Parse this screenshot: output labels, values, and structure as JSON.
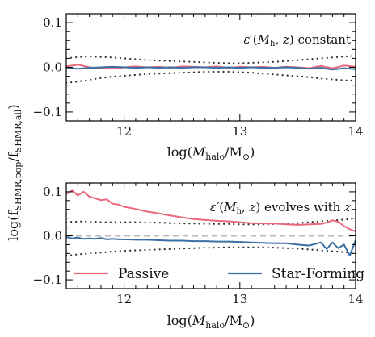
{
  "chart_data": [
    {
      "type": "line",
      "panel": "top",
      "annotation": "ε′(M_h, z) constant",
      "xlabel": "log(M_halo/M_⊙)",
      "xlim": [
        11.5,
        14.0
      ],
      "ylim": [
        -0.12,
        0.12
      ],
      "xticks": [
        "12",
        "13",
        "14"
      ],
      "yticks": [
        "0.1",
        "0.0",
        "−0.1"
      ],
      "x": [
        11.5,
        11.6,
        11.7,
        11.8,
        11.9,
        12.0,
        12.1,
        12.2,
        12.3,
        12.4,
        12.5,
        12.6,
        12.7,
        12.8,
        12.9,
        13.0,
        13.1,
        13.2,
        13.3,
        13.4,
        13.5,
        13.6,
        13.7,
        13.8,
        13.9,
        14.0
      ],
      "series": [
        {
          "name": "Passive",
          "color": "#e8697d",
          "values": [
            0.002,
            0.006,
            0.0,
            -0.002,
            -0.003,
            0.0,
            0.002,
            0.0,
            0.001,
            -0.001,
            0.002,
            0.001,
            0.0,
            0.002,
            -0.001,
            0.001,
            0.0,
            0.001,
            -0.001,
            0.001,
            0.0,
            -0.002,
            0.003,
            -0.002,
            0.004,
            0.001
          ]
        },
        {
          "name": "Star-Forming",
          "color": "#3b6ea3",
          "values": [
            -0.001,
            -0.003,
            -0.001,
            0.0,
            0.001,
            0.0,
            -0.001,
            0.0,
            -0.001,
            0.0,
            -0.001,
            0.0,
            0.0,
            -0.001,
            0.0,
            -0.001,
            0.0,
            -0.001,
            -0.001,
            0.0,
            -0.001,
            -0.003,
            -0.001,
            -0.005,
            -0.002,
            -0.004
          ]
        },
        {
          "name": "upper-envelope",
          "style": "dotted",
          "values": [
            0.02,
            0.023,
            0.024,
            0.023,
            0.022,
            0.02,
            0.018,
            0.016,
            0.015,
            0.014,
            0.013,
            0.012,
            0.011,
            0.01,
            0.009,
            0.009,
            0.01,
            0.011,
            0.012,
            0.014,
            0.016,
            0.018,
            0.02,
            0.022,
            0.024,
            0.026
          ]
        },
        {
          "name": "lower-envelope",
          "style": "dotted",
          "values": [
            -0.035,
            -0.032,
            -0.028,
            -0.024,
            -0.021,
            -0.019,
            -0.017,
            -0.015,
            -0.014,
            -0.013,
            -0.012,
            -0.011,
            -0.01,
            -0.01,
            -0.01,
            -0.011,
            -0.012,
            -0.014,
            -0.016,
            -0.018,
            -0.02,
            -0.022,
            -0.025,
            -0.027,
            -0.029,
            -0.03
          ]
        }
      ]
    },
    {
      "type": "line",
      "panel": "bottom",
      "annotation": "ε′(M_h, z) evolves with z",
      "xlabel": "log(M_halo/M_⊙)",
      "xlim": [
        11.5,
        14.0
      ],
      "ylim": [
        -0.12,
        0.12
      ],
      "xticks": [
        "12",
        "13",
        "14"
      ],
      "yticks": [
        "0.1",
        "0.0",
        "−0.1"
      ],
      "zero_line": {
        "y": 0.0,
        "style": "dashed",
        "color": "#bbbbbb"
      },
      "x": [
        11.5,
        11.55,
        11.6,
        11.65,
        11.7,
        11.75,
        11.8,
        11.85,
        11.9,
        11.95,
        12.0,
        12.1,
        12.2,
        12.3,
        12.4,
        12.5,
        12.6,
        12.7,
        12.8,
        12.9,
        13.0,
        13.1,
        13.2,
        13.3,
        13.4,
        13.5,
        13.6,
        13.7,
        13.75,
        13.8,
        13.85,
        13.9,
        13.95,
        14.0
      ],
      "series": [
        {
          "name": "Passive",
          "color": "#e8697d",
          "values": [
            0.095,
            0.103,
            0.092,
            0.1,
            0.089,
            0.085,
            0.081,
            0.083,
            0.073,
            0.071,
            0.066,
            0.061,
            0.055,
            0.051,
            0.046,
            0.042,
            0.038,
            0.036,
            0.034,
            0.033,
            0.031,
            0.029,
            0.028,
            0.028,
            0.026,
            0.025,
            0.026,
            0.027,
            0.03,
            0.035,
            0.032,
            0.022,
            0.015,
            0.01
          ]
        },
        {
          "name": "Star-Forming",
          "color": "#3b6ea3",
          "values": [
            -0.003,
            -0.006,
            -0.004,
            -0.007,
            -0.006,
            -0.007,
            -0.005,
            -0.008,
            -0.007,
            -0.008,
            -0.008,
            -0.009,
            -0.009,
            -0.01,
            -0.011,
            -0.011,
            -0.012,
            -0.012,
            -0.013,
            -0.013,
            -0.014,
            -0.015,
            -0.016,
            -0.017,
            -0.017,
            -0.02,
            -0.022,
            -0.015,
            -0.03,
            -0.015,
            -0.028,
            -0.02,
            -0.045,
            -0.01
          ]
        },
        {
          "name": "upper-envelope",
          "style": "dotted",
          "values": [
            0.03,
            0.032,
            0.032,
            0.033,
            0.032,
            0.032,
            0.031,
            0.031,
            0.031,
            0.031,
            0.031,
            0.031,
            0.03,
            0.03,
            0.029,
            0.028,
            0.028,
            0.027,
            0.027,
            0.027,
            0.026,
            0.026,
            0.026,
            0.027,
            0.028,
            0.029,
            0.031,
            0.033,
            0.034,
            0.035,
            0.036,
            0.037,
            0.038,
            0.04
          ]
        },
        {
          "name": "lower-envelope",
          "style": "dotted",
          "values": [
            -0.045,
            -0.044,
            -0.042,
            -0.041,
            -0.04,
            -0.039,
            -0.038,
            -0.037,
            -0.036,
            -0.035,
            -0.034,
            -0.033,
            -0.032,
            -0.031,
            -0.03,
            -0.029,
            -0.028,
            -0.027,
            -0.027,
            -0.026,
            -0.026,
            -0.026,
            -0.026,
            -0.027,
            -0.028,
            -0.029,
            -0.031,
            -0.033,
            -0.034,
            -0.035,
            -0.036,
            -0.037,
            -0.038,
            -0.04
          ]
        }
      ],
      "legend": {
        "placement": "lower-center",
        "entries": [
          "Passive",
          "Star-Forming"
        ]
      }
    }
  ],
  "shared_ylabel": "log(f_SHMR,pop/f_SHMR,all)"
}
